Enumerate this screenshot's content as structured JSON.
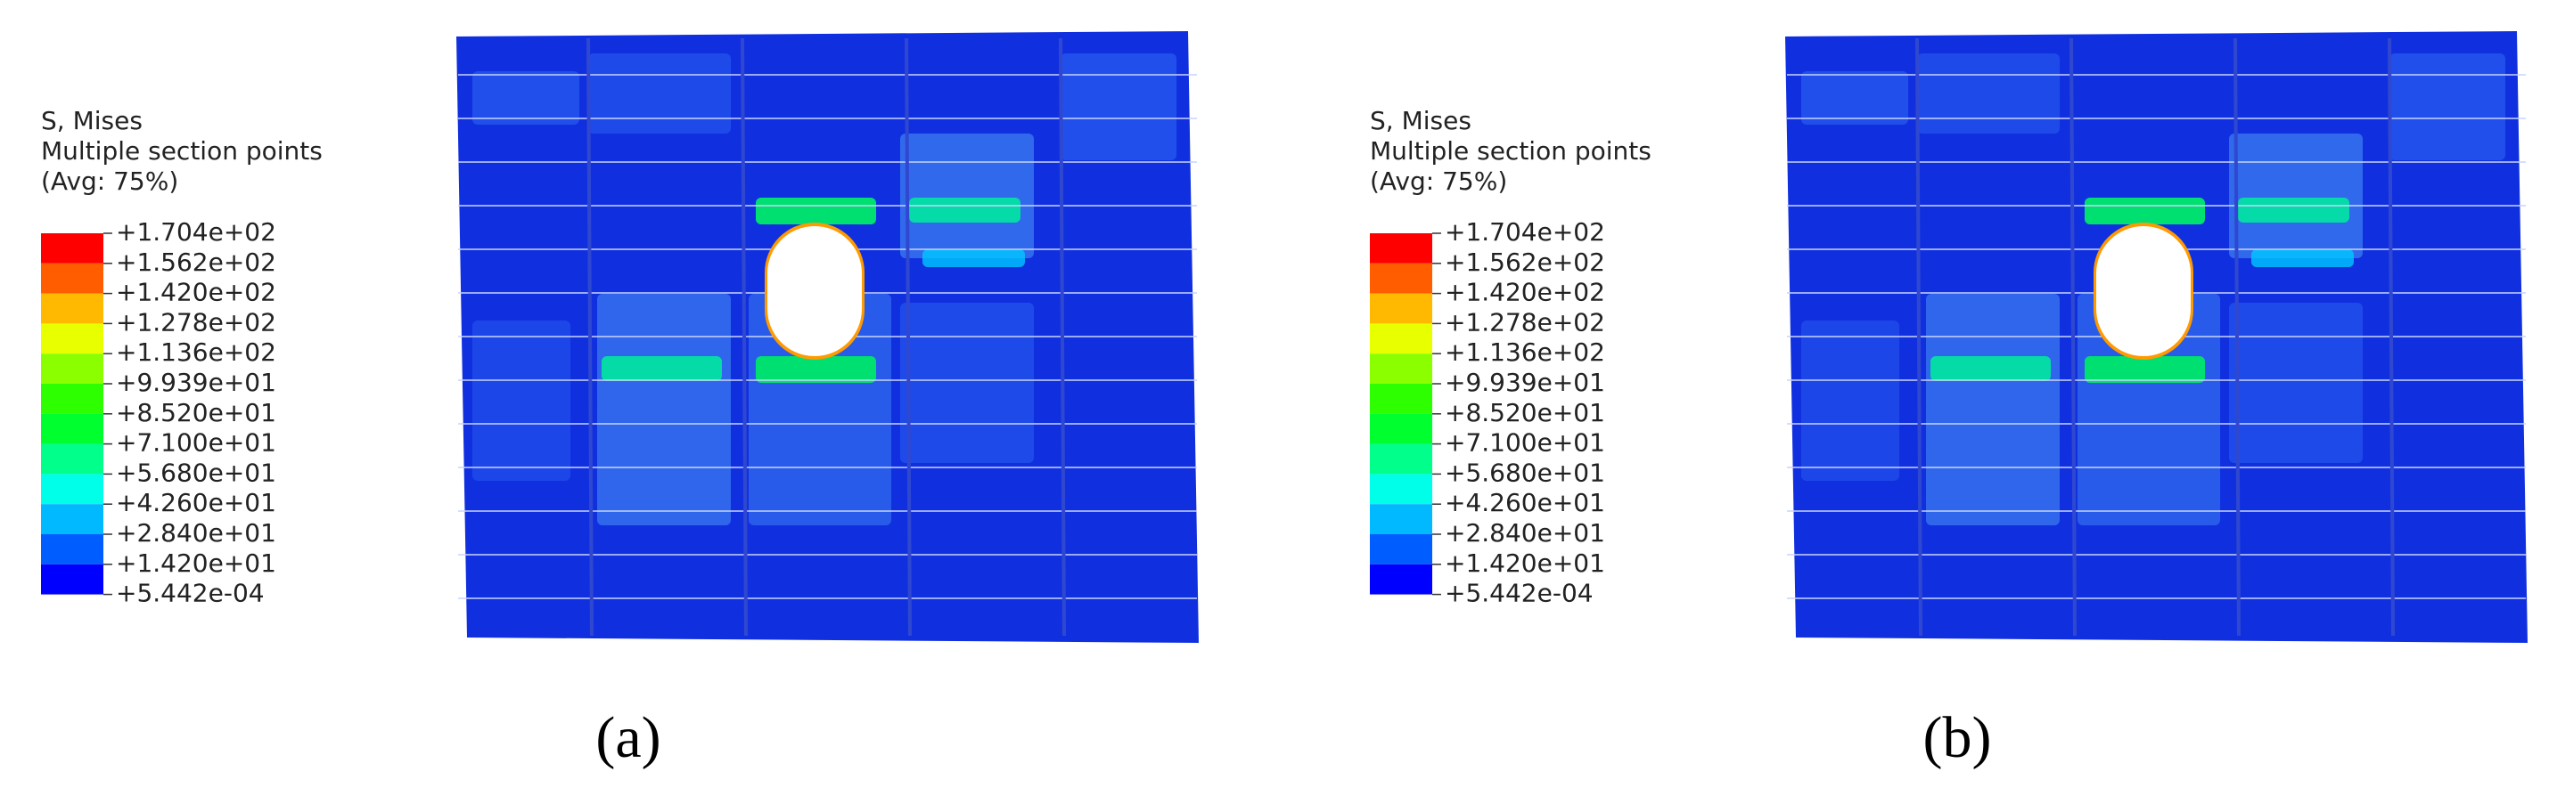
{
  "panels": [
    {
      "legend": {
        "title": [
          "S, Mises",
          "Multiple section points",
          "(Avg: 75%)"
        ],
        "labels": [
          "+1.704e+02",
          "+1.562e+02",
          "+1.420e+02",
          "+1.278e+02",
          "+1.136e+02",
          "+9.939e+01",
          "+8.520e+01",
          "+7.100e+01",
          "+5.680e+01",
          "+4.260e+01",
          "+2.840e+01",
          "+1.420e+01",
          "+5.442e-04"
        ],
        "colors": [
          "#ff0000",
          "#ff5d00",
          "#ffb900",
          "#e8ff00",
          "#8bff00",
          "#2eff00",
          "#00ff2e",
          "#00ff8b",
          "#00ffe8",
          "#00b9ff",
          "#005dff",
          "#0000ff"
        ]
      },
      "caption": "(a)"
    },
    {
      "legend": {
        "title": [
          "S, Mises",
          "Multiple section points",
          "(Avg: 75%)"
        ],
        "labels": [
          "+1.704e+02",
          "+1.562e+02",
          "+1.420e+02",
          "+1.278e+02",
          "+1.136e+02",
          "+9.939e+01",
          "+8.520e+01",
          "+7.100e+01",
          "+5.680e+01",
          "+4.260e+01",
          "+2.840e+01",
          "+1.420e+01",
          "+5.442e-04"
        ],
        "colors": [
          "#ff0000",
          "#ff5d00",
          "#ffb900",
          "#e8ff00",
          "#8bff00",
          "#2eff00",
          "#00ff2e",
          "#00ff8b",
          "#00ffe8",
          "#00b9ff",
          "#005dff",
          "#0000ff"
        ]
      },
      "caption": "(b)"
    }
  ]
}
